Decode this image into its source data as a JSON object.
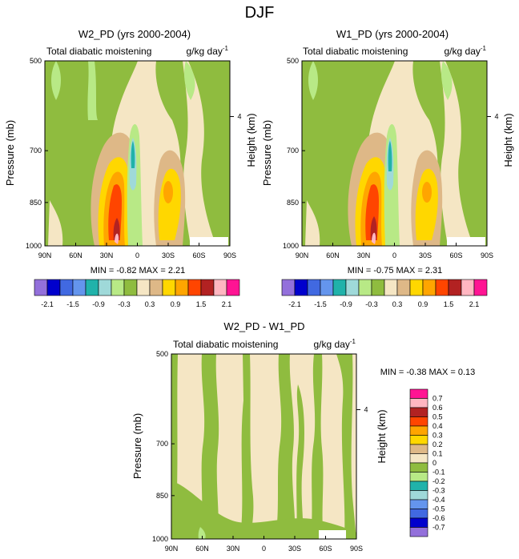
{
  "page_title": "DJF",
  "chart_data": [
    {
      "type": "heatmap",
      "title": "W2_PD (yrs 2000-2004)",
      "subtitle_left": "Total diabatic moistening",
      "subtitle_right": "g/kg day",
      "units_exp": "-1",
      "ylabel": "Pressure (mb)",
      "ylabel_right": "Height (km)",
      "yticks": [
        "500",
        "700",
        "850",
        "1000"
      ],
      "ytick_values": [
        500,
        700,
        850,
        1000
      ],
      "right_ticks": [
        "4"
      ],
      "xticks": [
        "90N",
        "60N",
        "30N",
        "0",
        "30S",
        "60S",
        "90S"
      ],
      "xlim": [
        90,
        -90
      ],
      "ylim": [
        1000,
        500
      ],
      "stats": "MIN = -0.82  MAX =  2.21",
      "min": -0.82,
      "max": 2.21
    },
    {
      "type": "heatmap",
      "title": "W1_PD (yrs 2000-2004)",
      "subtitle_left": "Total diabatic moistening",
      "subtitle_right": "g/kg day",
      "units_exp": "-1",
      "ylabel": "Pressure (mb)",
      "ylabel_right": "Height (km)",
      "yticks": [
        "500",
        "700",
        "850",
        "1000"
      ],
      "ytick_values": [
        500,
        700,
        850,
        1000
      ],
      "right_ticks": [
        "4"
      ],
      "xticks": [
        "90N",
        "60N",
        "30N",
        "0",
        "30S",
        "60S",
        "90S"
      ],
      "xlim": [
        90,
        -90
      ],
      "ylim": [
        1000,
        500
      ],
      "stats": "MIN = -0.75  MAX =  2.31",
      "min": -0.75,
      "max": 2.31
    },
    {
      "type": "heatmap",
      "title": "W2_PD - W1_PD",
      "subtitle_left": "Total diabatic moistening",
      "subtitle_right": "g/kg day",
      "units_exp": "-1",
      "ylabel": "Pressure (mb)",
      "ylabel_right": "Height (km)",
      "yticks": [
        "500",
        "700",
        "850",
        "1000"
      ],
      "ytick_values": [
        500,
        700,
        850,
        1000
      ],
      "right_ticks": [
        "4"
      ],
      "xticks": [
        "90N",
        "60N",
        "30N",
        "0",
        "30S",
        "60S",
        "90S"
      ],
      "xlim": [
        90,
        -90
      ],
      "ylim": [
        1000,
        500
      ],
      "stats": "MIN =  -0.38  MAX =   0.13",
      "min": -0.38,
      "max": 0.13
    }
  ],
  "colorbar_top": {
    "colors": [
      "#9370db",
      "#0000cd",
      "#4169e1",
      "#6495ed",
      "#20b2aa",
      "#9fd9d9",
      "#b8e986",
      "#8fbc3f",
      "#f5e6c4",
      "#deb887",
      "#ffd700",
      "#ffa500",
      "#ff4500",
      "#b22222",
      "#ffb6c1",
      "#ff1493"
    ],
    "labels": [
      "-2.1",
      "-1.5",
      "-0.9",
      "-0.3",
      "0.3",
      "0.9",
      "1.5",
      "2.1"
    ]
  },
  "colorbar_diff": {
    "colors": [
      "#ff1493",
      "#ffb6c1",
      "#b22222",
      "#ff4500",
      "#ffa500",
      "#ffd700",
      "#deb887",
      "#f5e6c4",
      "#8fbc3f",
      "#b8e986",
      "#20b2aa",
      "#9fd9d9",
      "#6495ed",
      "#4169e1",
      "#0000cd",
      "#9370db"
    ],
    "labels": [
      "0.7",
      "0.6",
      "0.5",
      "0.4",
      "0.3",
      "0.2",
      "0.1",
      "0",
      "-0.1",
      "-0.2",
      "-0.3",
      "-0.4",
      "-0.5",
      "-0.6",
      "-0.7"
    ]
  }
}
